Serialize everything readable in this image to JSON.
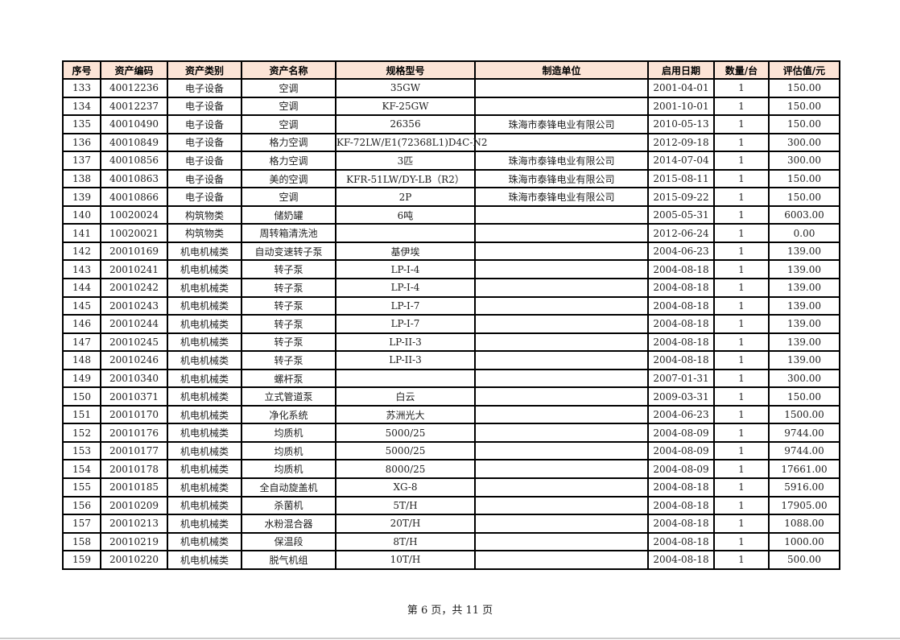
{
  "table": {
    "headers": [
      "序号",
      "资产编码",
      "资产类别",
      "资产名称",
      "规格型号",
      "制造单位",
      "启用日期",
      "数量/台",
      "评估值/元"
    ],
    "rows": [
      [
        "133",
        "40012236",
        "电子设备",
        "空调",
        "35GW",
        "",
        "2001-04-01",
        "1",
        "150.00"
      ],
      [
        "134",
        "40012237",
        "电子设备",
        "空调",
        "KF-25GW",
        "",
        "2001-10-01",
        "1",
        "150.00"
      ],
      [
        "135",
        "40010490",
        "电子设备",
        "空调",
        "26356",
        "珠海市泰锋电业有限公司",
        "2010-05-13",
        "1",
        "150.00"
      ],
      [
        "136",
        "40010849",
        "电子设备",
        "格力空调",
        "KF-72LW/E1(72368L1)D4C-N2",
        "",
        "2012-09-18",
        "1",
        "300.00"
      ],
      [
        "137",
        "40010856",
        "电子设备",
        "格力空调",
        "3匹",
        "珠海市泰锋电业有限公司",
        "2014-07-04",
        "1",
        "300.00"
      ],
      [
        "138",
        "40010863",
        "电子设备",
        "美的空调",
        "KFR-51LW/DY-LB（R2）",
        "珠海市泰锋电业有限公司",
        "2015-08-11",
        "1",
        "150.00"
      ],
      [
        "139",
        "40010866",
        "电子设备",
        "空调",
        "2P",
        "珠海市泰锋电业有限公司",
        "2015-09-22",
        "1",
        "150.00"
      ],
      [
        "140",
        "10020024",
        "构筑物类",
        "储奶罐",
        "6吨",
        "",
        "2005-05-31",
        "1",
        "6003.00"
      ],
      [
        "141",
        "10020021",
        "构筑物类",
        "周转箱清洗池",
        "",
        "",
        "2012-06-24",
        "1",
        "0.00"
      ],
      [
        "142",
        "20010169",
        "机电机械类",
        "自动变速转子泵",
        "基伊埃",
        "",
        "2004-06-23",
        "1",
        "139.00"
      ],
      [
        "143",
        "20010241",
        "机电机械类",
        "转子泵",
        "LP-I-4",
        "",
        "2004-08-18",
        "1",
        "139.00"
      ],
      [
        "144",
        "20010242",
        "机电机械类",
        "转子泵",
        "LP-I-4",
        "",
        "2004-08-18",
        "1",
        "139.00"
      ],
      [
        "145",
        "20010243",
        "机电机械类",
        "转子泵",
        "LP-I-7",
        "",
        "2004-08-18",
        "1",
        "139.00"
      ],
      [
        "146",
        "20010244",
        "机电机械类",
        "转子泵",
        "LP-I-7",
        "",
        "2004-08-18",
        "1",
        "139.00"
      ],
      [
        "147",
        "20010245",
        "机电机械类",
        "转子泵",
        "LP-II-3",
        "",
        "2004-08-18",
        "1",
        "139.00"
      ],
      [
        "148",
        "20010246",
        "机电机械类",
        "转子泵",
        "LP-II-3",
        "",
        "2004-08-18",
        "1",
        "139.00"
      ],
      [
        "149",
        "20010340",
        "机电机械类",
        "螺杆泵",
        "",
        "",
        "2007-01-31",
        "1",
        "300.00"
      ],
      [
        "150",
        "20010371",
        "机电机械类",
        "立式管道泵",
        "白云",
        "",
        "2009-03-31",
        "1",
        "150.00"
      ],
      [
        "151",
        "20010170",
        "机电机械类",
        "净化系统",
        "苏洲光大",
        "",
        "2004-06-23",
        "1",
        "1500.00"
      ],
      [
        "152",
        "20010176",
        "机电机械类",
        "均质机",
        "5000/25",
        "",
        "2004-08-09",
        "1",
        "9744.00"
      ],
      [
        "153",
        "20010177",
        "机电机械类",
        "均质机",
        "5000/25",
        "",
        "2004-08-09",
        "1",
        "9744.00"
      ],
      [
        "154",
        "20010178",
        "机电机械类",
        "均质机",
        "8000/25",
        "",
        "2004-08-09",
        "1",
        "17661.00"
      ],
      [
        "155",
        "20010185",
        "机电机械类",
        "全自动旋盖机",
        "XG-8",
        "",
        "2004-08-18",
        "1",
        "5916.00"
      ],
      [
        "156",
        "20010209",
        "机电机械类",
        "杀菌机",
        "5T/H",
        "",
        "2004-08-18",
        "1",
        "17905.00"
      ],
      [
        "157",
        "20010213",
        "机电机械类",
        "水粉混合器",
        "20T/H",
        "",
        "2004-08-18",
        "1",
        "1088.00"
      ],
      [
        "158",
        "20010219",
        "机电机械类",
        "保温段",
        "8T/H",
        "",
        "2004-08-18",
        "1",
        "1000.00"
      ],
      [
        "159",
        "20010220",
        "机电机械类",
        "脱气机组",
        "10T/H",
        "",
        "2004-08-18",
        "1",
        "500.00"
      ]
    ]
  },
  "footer": {
    "page_label": "第 6 页，共 11 页"
  },
  "colors": {
    "header_bg": "#fce4d6"
  }
}
